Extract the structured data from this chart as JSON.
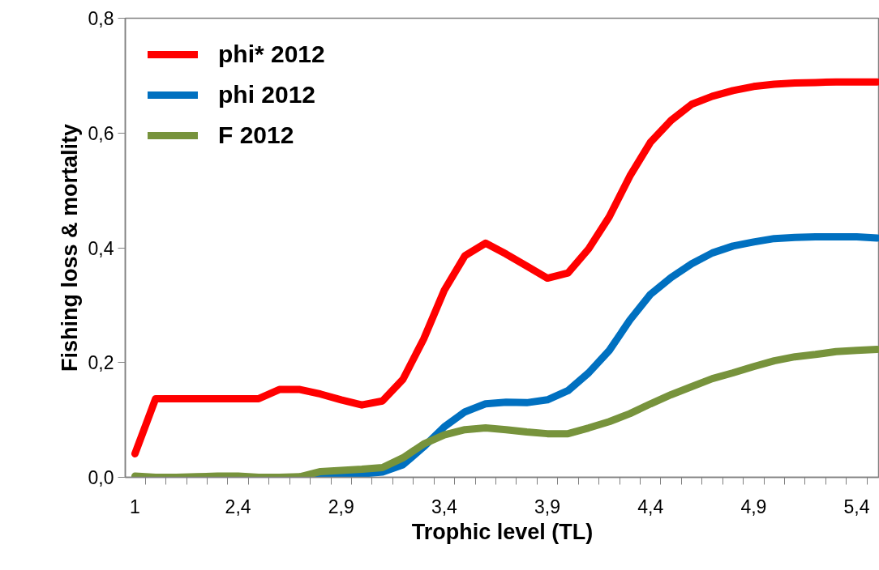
{
  "chart_data": {
    "type": "line",
    "xlabel": "Trophic level (TL)",
    "ylabel": "Fishing loss & mortality",
    "categories": [
      "1",
      null,
      null,
      null,
      null,
      "2,4",
      null,
      null,
      null,
      null,
      "2,9",
      null,
      null,
      null,
      null,
      "3,4",
      null,
      null,
      null,
      null,
      "3,9",
      null,
      null,
      null,
      null,
      "4,4",
      null,
      null,
      null,
      null,
      "4,9",
      null,
      null,
      null,
      null,
      "5,4",
      null
    ],
    "series": [
      {
        "name": "phi* 2012",
        "color": "#ff0000",
        "values": [
          0.041,
          0.137,
          0.137,
          0.137,
          0.137,
          0.137,
          0.137,
          0.153,
          0.153,
          0.145,
          0.135,
          0.126,
          0.133,
          0.171,
          0.241,
          0.326,
          0.386,
          0.408,
          0.389,
          0.368,
          0.347,
          0.356,
          0.398,
          0.454,
          0.525,
          0.584,
          0.622,
          0.65,
          0.664,
          0.674,
          0.681,
          0.685,
          0.687,
          0.688,
          0.689,
          0.689,
          0.689
        ]
      },
      {
        "name": "phi 2012",
        "color": "#0070c0",
        "values": [
          null,
          null,
          null,
          null,
          null,
          null,
          null,
          null,
          0.0,
          0.002,
          0.004,
          0.006,
          0.009,
          0.022,
          0.053,
          0.088,
          0.114,
          0.128,
          0.131,
          0.13,
          0.135,
          0.151,
          0.182,
          0.221,
          0.274,
          0.319,
          0.348,
          0.372,
          0.391,
          0.403,
          0.41,
          0.416,
          0.418,
          0.419,
          0.419,
          0.419,
          0.417
        ]
      },
      {
        "name": "F 2012",
        "color": "#77933c",
        "values": [
          0.002,
          0.0,
          0.0,
          0.001,
          0.002,
          0.002,
          0.0,
          0.0,
          0.001,
          0.01,
          0.012,
          0.014,
          0.017,
          0.034,
          0.058,
          0.074,
          0.083,
          0.086,
          0.083,
          0.079,
          0.076,
          0.076,
          0.086,
          0.097,
          0.111,
          0.128,
          0.144,
          0.158,
          0.172,
          0.182,
          0.193,
          0.203,
          0.21,
          0.214,
          0.219,
          0.221,
          0.223
        ]
      }
    ],
    "ylim": [
      0,
      0.8
    ],
    "yticks": [
      {
        "value": 0,
        "label": "0,0"
      },
      {
        "value": 0.2,
        "label": "0,2"
      },
      {
        "value": 0.4,
        "label": "0,4"
      },
      {
        "value": 0.6,
        "label": "0,6"
      },
      {
        "value": 0.8,
        "label": "0,8"
      }
    ],
    "grid": false,
    "legend": "top left",
    "marker": "none",
    "line_style": "solid"
  }
}
